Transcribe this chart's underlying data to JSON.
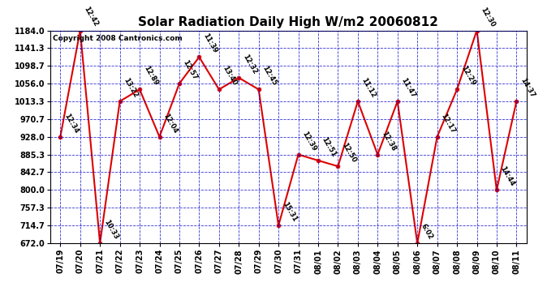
{
  "title": "Solar Radiation Daily High W/m2 20060812",
  "copyright": "Copyright 2008 Cantronics.com",
  "x_labels": [
    "07/19",
    "07/20",
    "07/21",
    "07/22",
    "07/23",
    "07/24",
    "07/25",
    "07/26",
    "07/27",
    "07/28",
    "07/29",
    "07/30",
    "07/31",
    "08/01",
    "08/02",
    "08/03",
    "08/04",
    "08/05",
    "08/06",
    "08/07",
    "08/08",
    "08/09",
    "08/10",
    "08/11"
  ],
  "y_values": [
    928.0,
    1184.0,
    672.0,
    1013.3,
    1042.0,
    928.0,
    1056.0,
    1120.0,
    1042.0,
    1070.0,
    1042.0,
    714.7,
    885.3,
    871.0,
    857.0,
    1013.3,
    885.3,
    1013.3,
    672.0,
    928.0,
    1042.0,
    1184.0,
    800.0,
    1013.3
  ],
  "point_labels": [
    "12:34",
    "12:42",
    "10:33",
    "13:22",
    "12:89",
    "12:04",
    "12:57",
    "11:39",
    "13:40",
    "12:32",
    "12:45",
    "15:31",
    "12:39",
    "12:51",
    "12:50",
    "11:12",
    "12:38",
    "11:47",
    "6:02",
    "12:17",
    "12:29",
    "12:30",
    "14:44",
    "14:37"
  ],
  "line_color": "#dd0000",
  "marker_color": "#dd0000",
  "grid_color": "#0000cc",
  "background_color": "#ffffff",
  "plot_bg_color": "#ffffff",
  "ylim_min": 672.0,
  "ylim_max": 1184.0,
  "yticks": [
    672.0,
    714.7,
    757.3,
    800.0,
    842.7,
    885.3,
    928.0,
    970.7,
    1013.3,
    1056.0,
    1098.7,
    1141.3,
    1184.0
  ],
  "figwidth": 6.9,
  "figheight": 3.75,
  "dpi": 100
}
